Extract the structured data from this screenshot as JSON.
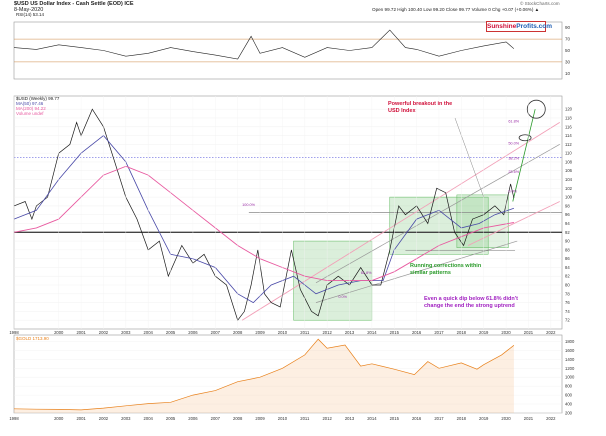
{
  "header": {
    "title": "$USD US Dollar Index - Cash Settle (EOD) ICE",
    "date": "8-May-2020",
    "quote": "Open 99.72 High 100.40 Low 99.20 Close 99.77 Volume 0 Chg +0.07 (+0.06%) ▲",
    "watermark": "© StockCharts.com",
    "logo_a": "Sunshine",
    "logo_b": "Profits",
    "logo_c": ".com"
  },
  "annotations": {
    "breakout": "Powerful breakout in the USD Index",
    "running": "Running corrections within similar patterns",
    "dip": "Even a quick dip below 61.8% didn't change the end the strong uptrend"
  },
  "colors": {
    "price": "#1a1a1a",
    "ma50": "#4a4aa8",
    "ma200": "#e85aa0",
    "rsi": "#222222",
    "gold": "#e8801a",
    "fib": "#9a2da6",
    "box": "#5cb85c",
    "ann_red": "#d0103a",
    "ann_green": "#2a9a2a",
    "ann_purple": "#a020c0",
    "logo_red": "#d0103a",
    "logo_blue": "#1f5fb4"
  },
  "chart_data": [
    {
      "type": "line",
      "panel": "rsi",
      "legend": "RSI(14) 53.14",
      "ylim": [
        0,
        100
      ],
      "y_ticks": [
        "90",
        "70",
        "50",
        "30",
        "10"
      ],
      "levels": [
        70,
        30
      ],
      "series": [
        {
          "x": [
            1998.0,
            1999.0,
            2000.0,
            2001.0,
            2002.0,
            2003.0,
            2004.0,
            2005.0,
            2006.0,
            2007.0,
            2008.0,
            2008.6,
            2009.0,
            2010.0,
            2011.0,
            2012.0,
            2013.0,
            2014.0,
            2014.8,
            2015.5,
            2016.0,
            2017.0,
            2018.0,
            2019.0,
            2020.0,
            2020.35
          ],
          "y": [
            55,
            52,
            60,
            55,
            50,
            40,
            45,
            55,
            48,
            42,
            35,
            75,
            45,
            55,
            38,
            55,
            50,
            55,
            86,
            55,
            52,
            40,
            50,
            58,
            65,
            53.14
          ]
        }
      ]
    },
    {
      "type": "line",
      "panel": "price",
      "title": "$USD (Weekly) 99.77",
      "legend": [
        "$USD (Weekly) 99.77",
        "MA(50) 97.46",
        "MA(200) 94.22",
        "Volume undef"
      ],
      "ylim": [
        70,
        123
      ],
      "y_ticks": [
        "120",
        "118",
        "116",
        "114",
        "112",
        "110",
        "108",
        "106",
        "104",
        "102",
        "100",
        "98",
        "96",
        "94",
        "92",
        "90",
        "88",
        "86",
        "84",
        "82",
        "80",
        "78",
        "76",
        "74",
        "72"
      ],
      "series": [
        {
          "name": "$USD",
          "x": [
            1998.0,
            1998.5,
            1998.8,
            1999.0,
            1999.5,
            2000.0,
            2000.5,
            2000.8,
            2001.0,
            2001.5,
            2002.0,
            2002.5,
            2003.0,
            2003.5,
            2004.0,
            2004.5,
            2004.9,
            2005.5,
            2006.0,
            2006.5,
            2007.0,
            2007.5,
            2008.0,
            2008.3,
            2008.6,
            2008.9,
            2009.2,
            2009.5,
            2009.9,
            2010.4,
            2010.8,
            2011.0,
            2011.3,
            2011.6,
            2012.0,
            2012.5,
            2013.0,
            2013.5,
            2014.0,
            2014.4,
            2014.8,
            2015.2,
            2015.5,
            2016.0,
            2016.5,
            2016.9,
            2017.3,
            2017.7,
            2018.1,
            2018.5,
            2019.0,
            2019.5,
            2019.9,
            2020.2,
            2020.35
          ],
          "y": [
            98,
            99,
            95,
            98,
            100,
            110,
            112,
            117,
            114,
            120,
            116,
            108,
            100,
            95,
            88,
            90,
            82,
            89,
            85,
            87,
            82,
            80,
            72,
            74,
            80,
            88,
            78,
            76,
            75,
            88,
            79,
            77,
            74,
            73,
            80,
            82,
            80,
            84,
            80,
            80,
            88,
            98,
            96,
            98,
            94,
            102,
            101,
            92,
            89,
            95,
            96,
            98,
            96,
            103,
            99.77
          ]
        },
        {
          "name": "MA(50)",
          "x": [
            1998.0,
            1999.0,
            2000.0,
            2001.0,
            2002.0,
            2003.0,
            2004.0,
            2005.0,
            2006.0,
            2007.0,
            2008.0,
            2008.7,
            2009.5,
            2010.5,
            2011.5,
            2012.5,
            2013.5,
            2014.5,
            2015.0,
            2016.0,
            2017.0,
            2018.0,
            2018.8,
            2019.5,
            2020.35
          ],
          "y": [
            95,
            97,
            104,
            110,
            114,
            108,
            97,
            87,
            86,
            84,
            78,
            76,
            80,
            82,
            78,
            80,
            81,
            81,
            88,
            95,
            97,
            93,
            94,
            96,
            97.46
          ]
        },
        {
          "name": "MA(200)",
          "x": [
            1998.0,
            1999.0,
            2000.0,
            2001.0,
            2002.0,
            2003.0,
            2004.0,
            2005.0,
            2006.0,
            2007.0,
            2008.0,
            2009.0,
            2010.0,
            2011.0,
            2012.0,
            2013.0,
            2014.0,
            2015.0,
            2016.0,
            2017.0,
            2018.0,
            2019.0,
            2020.35
          ],
          "y": [
            92,
            93,
            95,
            100,
            105,
            107,
            105,
            101,
            97,
            93,
            89,
            86,
            84,
            82,
            81,
            81,
            81,
            83,
            86,
            89,
            91,
            93,
            94.22
          ]
        }
      ],
      "fib_labels": [
        "61.8%",
        "50.0%",
        "38.2%",
        "23.6%",
        "0.0%",
        "100.0%",
        "0.0%",
        "61.8%"
      ]
    },
    {
      "type": "area",
      "panel": "gold",
      "legend": "$GOLD 1713.90",
      "ylim": [
        200,
        1900
      ],
      "y_ticks": [
        "1800",
        "1600",
        "1400",
        "1200",
        "1000",
        "800",
        "600",
        "400",
        "200"
      ],
      "series": [
        {
          "name": "$GOLD",
          "x": [
            1998.0,
            1999.0,
            2000.0,
            2001.0,
            2002.0,
            2003.0,
            2004.0,
            2005.0,
            2006.0,
            2007.0,
            2008.0,
            2009.0,
            2010.0,
            2011.0,
            2011.6,
            2012.0,
            2012.8,
            2013.5,
            2014.0,
            2015.0,
            2015.9,
            2016.5,
            2017.0,
            2018.0,
            2018.7,
            2019.0,
            2019.8,
            2020.35
          ],
          "y": [
            295,
            285,
            280,
            270,
            310,
            360,
            410,
            440,
            600,
            700,
            900,
            1000,
            1200,
            1500,
            1850,
            1650,
            1720,
            1250,
            1300,
            1180,
            1060,
            1350,
            1200,
            1320,
            1180,
            1280,
            1500,
            1713.9
          ]
        }
      ]
    }
  ],
  "x_axis": {
    "xlim": [
      1998.0,
      2022.5
    ],
    "tick_labels": [
      "1998",
      "2000",
      "2001",
      "2002",
      "2003",
      "2004",
      "2005",
      "2006",
      "2007",
      "2008",
      "2009",
      "2010",
      "2011",
      "2012",
      "2013",
      "2014",
      "2015",
      "2016",
      "2017",
      "2018",
      "2019",
      "2020",
      "2021",
      "2022"
    ],
    "tick_values": [
      1998,
      2000,
      2001,
      2002,
      2003,
      2004,
      2005,
      2006,
      2007,
      2008,
      2009,
      2010,
      2011,
      2012,
      2013,
      2014,
      2015,
      2016,
      2017,
      2018,
      2019,
      2020,
      2021,
      2022
    ]
  }
}
